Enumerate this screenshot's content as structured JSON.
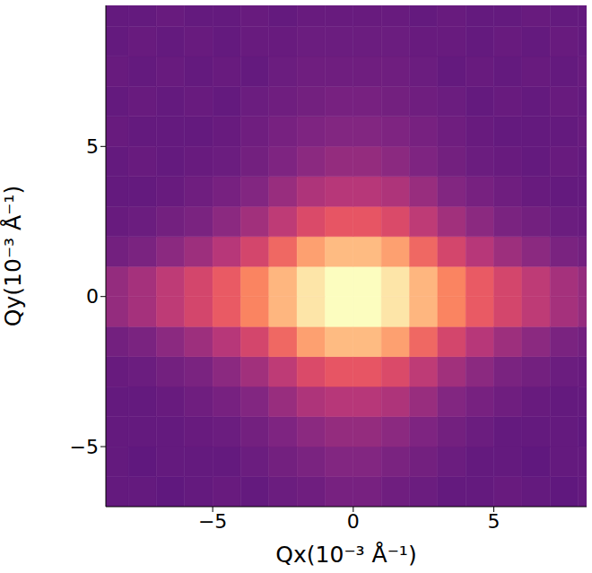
{
  "chart_data": {
    "type": "heatmap",
    "x_label": "Qx(10⁻³ Å⁻¹)",
    "y_label": "Qy(10⁻³ Å⁻¹)",
    "xlim": [
      -8.8,
      8.3
    ],
    "ylim": [
      -7.0,
      9.7
    ],
    "xticks": [
      {
        "value": -5,
        "label": "−5"
      },
      0,
      5
    ],
    "yticks": [
      {
        "value": -5,
        "label": "−5"
      },
      0,
      5
    ],
    "x_bins": [
      -8.8,
      -8,
      -7,
      -6,
      -5,
      -4,
      -3,
      -2,
      -1,
      0,
      1,
      2,
      3,
      4,
      5,
      6,
      7,
      8,
      8.3
    ],
    "y_bins": [
      -7,
      -6,
      -5,
      -4,
      -3,
      -2,
      -1,
      0,
      1,
      2,
      3,
      4,
      5,
      6,
      7,
      8,
      9,
      9.7
    ],
    "zlim": [
      0,
      1
    ],
    "cells": [
      [
        0.3,
        0.3,
        0.29,
        0.3,
        0.31,
        0.3,
        0.32,
        0.33,
        0.35,
        0.35,
        0.33,
        0.32,
        0.3,
        0.3,
        0.31,
        0.3,
        0.29,
        0.3
      ],
      [
        0.3,
        0.29,
        0.3,
        0.3,
        0.3,
        0.32,
        0.34,
        0.36,
        0.38,
        0.38,
        0.36,
        0.34,
        0.32,
        0.3,
        0.3,
        0.29,
        0.3,
        0.3
      ],
      [
        0.3,
        0.3,
        0.3,
        0.31,
        0.32,
        0.34,
        0.37,
        0.4,
        0.42,
        0.42,
        0.4,
        0.37,
        0.34,
        0.32,
        0.3,
        0.3,
        0.3,
        0.29
      ],
      [
        0.3,
        0.3,
        0.31,
        0.33,
        0.35,
        0.38,
        0.43,
        0.48,
        0.5,
        0.5,
        0.48,
        0.43,
        0.38,
        0.35,
        0.33,
        0.31,
        0.3,
        0.3
      ],
      [
        0.31,
        0.32,
        0.34,
        0.36,
        0.4,
        0.45,
        0.52,
        0.6,
        0.64,
        0.64,
        0.6,
        0.52,
        0.45,
        0.4,
        0.36,
        0.34,
        0.32,
        0.31
      ],
      [
        0.34,
        0.36,
        0.4,
        0.44,
        0.5,
        0.58,
        0.68,
        0.8,
        0.86,
        0.86,
        0.8,
        0.68,
        0.58,
        0.5,
        0.44,
        0.4,
        0.36,
        0.34
      ],
      [
        0.42,
        0.46,
        0.52,
        0.58,
        0.65,
        0.74,
        0.85,
        0.95,
        1.0,
        1.0,
        0.95,
        0.85,
        0.74,
        0.65,
        0.58,
        0.52,
        0.46,
        0.42
      ],
      [
        0.42,
        0.46,
        0.52,
        0.58,
        0.65,
        0.74,
        0.85,
        0.95,
        1.0,
        1.0,
        0.95,
        0.85,
        0.74,
        0.65,
        0.58,
        0.52,
        0.46,
        0.42
      ],
      [
        0.34,
        0.36,
        0.4,
        0.44,
        0.5,
        0.58,
        0.68,
        0.8,
        0.86,
        0.86,
        0.8,
        0.68,
        0.58,
        0.5,
        0.44,
        0.4,
        0.36,
        0.34
      ],
      [
        0.31,
        0.32,
        0.34,
        0.36,
        0.4,
        0.45,
        0.52,
        0.6,
        0.64,
        0.64,
        0.6,
        0.52,
        0.45,
        0.4,
        0.36,
        0.34,
        0.32,
        0.31
      ],
      [
        0.3,
        0.3,
        0.31,
        0.33,
        0.35,
        0.38,
        0.43,
        0.48,
        0.5,
        0.5,
        0.48,
        0.43,
        0.38,
        0.35,
        0.33,
        0.31,
        0.3,
        0.3
      ],
      [
        0.3,
        0.31,
        0.3,
        0.31,
        0.32,
        0.34,
        0.37,
        0.4,
        0.42,
        0.42,
        0.4,
        0.37,
        0.34,
        0.32,
        0.31,
        0.3,
        0.31,
        0.3
      ],
      [
        0.31,
        0.3,
        0.3,
        0.3,
        0.31,
        0.33,
        0.35,
        0.37,
        0.38,
        0.38,
        0.37,
        0.35,
        0.33,
        0.31,
        0.3,
        0.3,
        0.3,
        0.31
      ],
      [
        0.3,
        0.31,
        0.3,
        0.31,
        0.3,
        0.32,
        0.33,
        0.34,
        0.35,
        0.35,
        0.34,
        0.33,
        0.32,
        0.3,
        0.31,
        0.3,
        0.31,
        0.3
      ],
      [
        0.31,
        0.3,
        0.31,
        0.3,
        0.31,
        0.3,
        0.32,
        0.33,
        0.33,
        0.33,
        0.33,
        0.32,
        0.3,
        0.31,
        0.3,
        0.31,
        0.3,
        0.31
      ],
      [
        0.3,
        0.31,
        0.3,
        0.31,
        0.3,
        0.31,
        0.31,
        0.32,
        0.32,
        0.32,
        0.32,
        0.31,
        0.31,
        0.3,
        0.31,
        0.3,
        0.31,
        0.3
      ],
      [
        0.3,
        0.3,
        0.31,
        0.3,
        0.3,
        0.31,
        0.3,
        0.31,
        0.31,
        0.31,
        0.31,
        0.3,
        0.31,
        0.3,
        0.3,
        0.31,
        0.3,
        0.3
      ]
    ]
  }
}
